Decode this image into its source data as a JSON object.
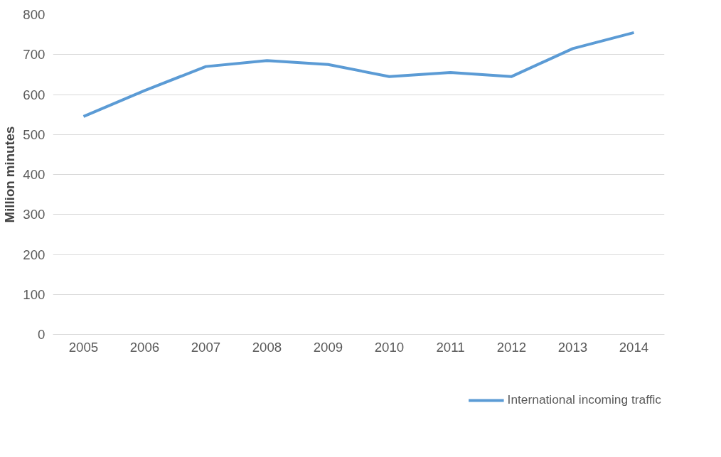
{
  "chart_data": {
    "type": "line",
    "ylabel": "Million minutes",
    "categories": [
      "2005",
      "2006",
      "2007",
      "2008",
      "2009",
      "2010",
      "2011",
      "2012",
      "2013",
      "2014"
    ],
    "series": [
      {
        "name": "International incoming traffic",
        "color": "#5b9bd5",
        "values": [
          545,
          610,
          670,
          685,
          675,
          645,
          655,
          645,
          715,
          755
        ]
      }
    ],
    "ylim": [
      0,
      800
    ],
    "yticks": [
      0,
      100,
      200,
      300,
      400,
      500,
      600,
      700,
      800
    ],
    "grid": "y",
    "legend": "bottom",
    "line_style": "solid",
    "marker": "none"
  }
}
